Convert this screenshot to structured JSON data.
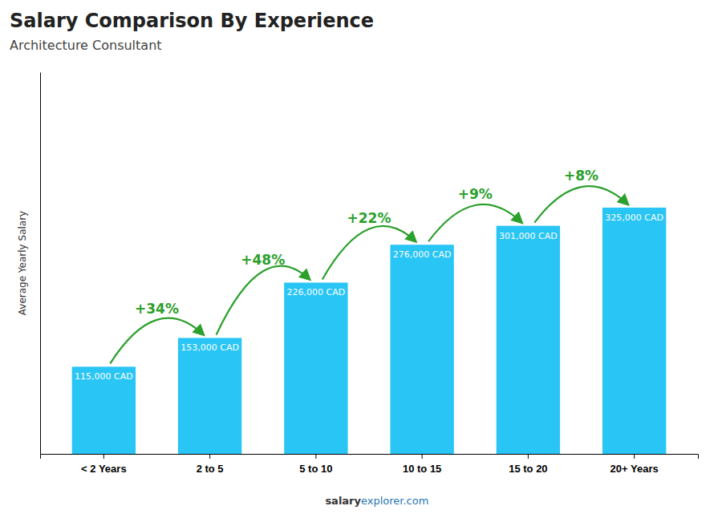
{
  "chart_data": {
    "type": "bar",
    "title": "Salary Comparison By Experience",
    "subtitle": "Architecture Consultant",
    "y_label": "Average Yearly Salary",
    "categories": [
      "< 2 Years",
      "2 to 5",
      "5 to 10",
      "10 to 15",
      "15 to 20",
      "20+ Years"
    ],
    "values": [
      115000,
      153000,
      226000,
      276000,
      301000,
      325000
    ],
    "value_labels": [
      "115,000 CAD",
      "153,000 CAD",
      "226,000 CAD",
      "276,000 CAD",
      "301,000 CAD",
      "325,000 CAD"
    ],
    "data_labels": true,
    "annotations": [
      "+34%",
      "+48%",
      "+22%",
      "+9%",
      "+8%"
    ],
    "footer": [
      "salary",
      "explorer.com"
    ],
    "color": "#29c5f5",
    "ylim": [
      0,
      503750
    ],
    "tick_labels": "x",
    "grid": false
  }
}
